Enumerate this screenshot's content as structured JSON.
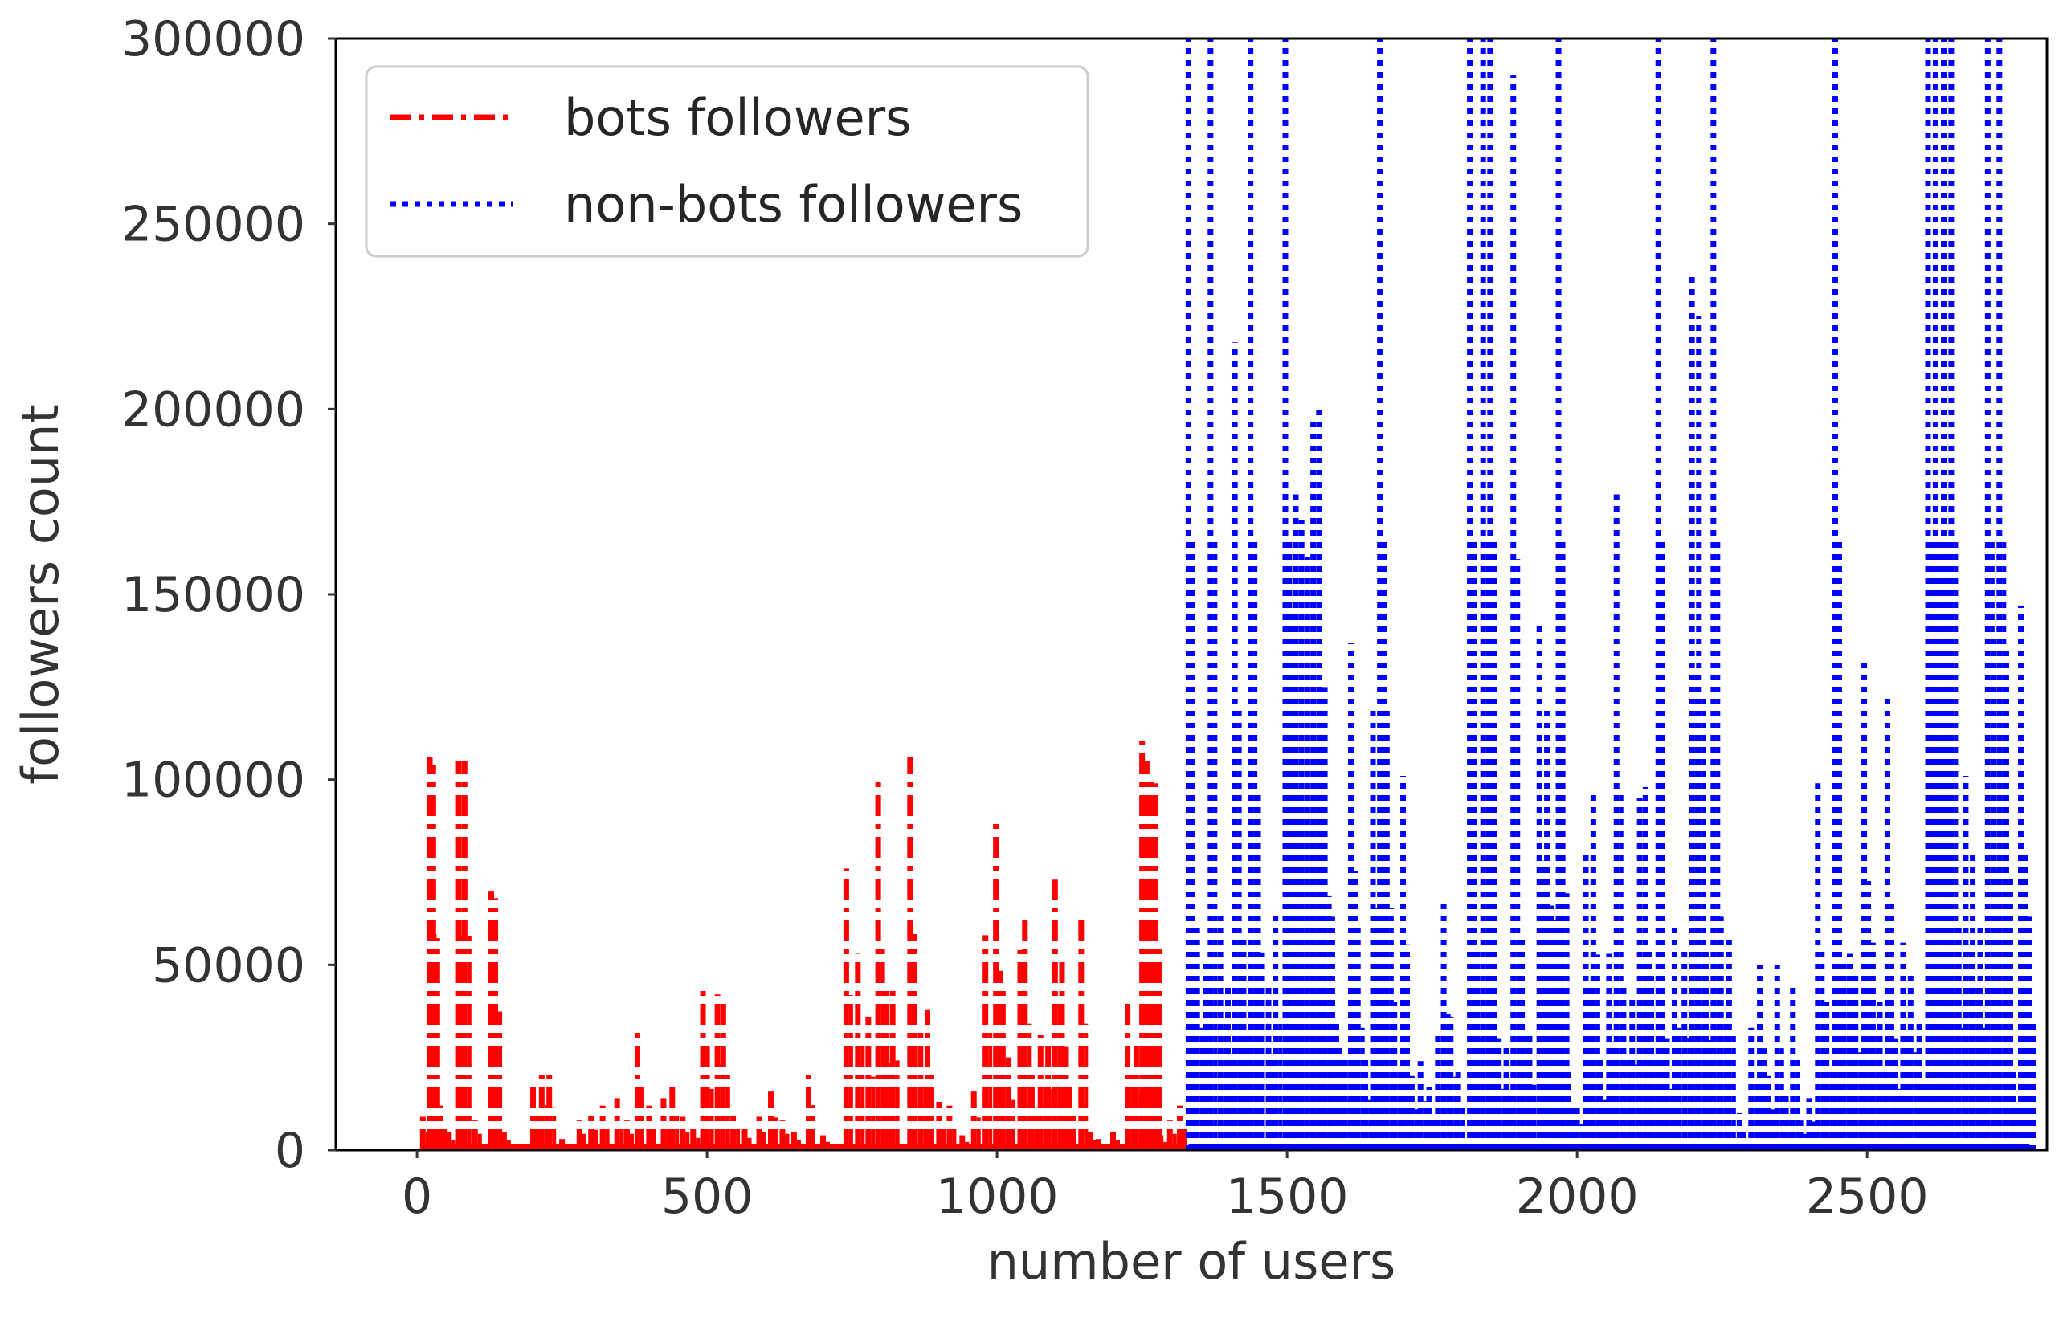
{
  "chart_data": {
    "type": "line",
    "title": "",
    "xlabel": "number of users",
    "ylabel": "followers count",
    "xlim": [
      -140,
      2810
    ],
    "ylim": [
      0,
      300000
    ],
    "xticks": [
      0,
      500,
      1000,
      1500,
      2000,
      2500
    ],
    "xtick_labels": [
      "0",
      "500",
      "1000",
      "1500",
      "2000",
      "2500"
    ],
    "yticks": [
      0,
      50000,
      100000,
      150000,
      200000,
      250000,
      300000
    ],
    "ytick_labels": [
      "0",
      "50000",
      "100000",
      "150000",
      "200000",
      "250000",
      "300000"
    ],
    "grid": false,
    "legend_position": "upper left",
    "series": [
      {
        "name": "bots followers",
        "color": "#ff0000",
        "linestyle": "dashdot",
        "spikes": [
          [
            10,
            9000
          ],
          [
            22,
            106000
          ],
          [
            28,
            104000
          ],
          [
            40,
            12000
          ],
          [
            55,
            5000
          ],
          [
            72,
            105000
          ],
          [
            82,
            105000
          ],
          [
            100,
            8000
          ],
          [
            128,
            70000
          ],
          [
            135,
            68000
          ],
          [
            150,
            5000
          ],
          [
            200,
            18000
          ],
          [
            215,
            22000
          ],
          [
            228,
            21000
          ],
          [
            250,
            3000
          ],
          [
            280,
            8000
          ],
          [
            300,
            10000
          ],
          [
            320,
            12000
          ],
          [
            345,
            14000
          ],
          [
            362,
            8000
          ],
          [
            380,
            33000
          ],
          [
            400,
            12000
          ],
          [
            425,
            14000
          ],
          [
            440,
            17000
          ],
          [
            458,
            9000
          ],
          [
            476,
            6000
          ],
          [
            493,
            43000
          ],
          [
            500,
            30000
          ],
          [
            518,
            42000
          ],
          [
            528,
            40000
          ],
          [
            545,
            11000
          ],
          [
            565,
            6000
          ],
          [
            590,
            9000
          ],
          [
            610,
            16000
          ],
          [
            630,
            8000
          ],
          [
            650,
            5000
          ],
          [
            675,
            22000
          ],
          [
            700,
            4000
          ],
          [
            740,
            76000
          ],
          [
            760,
            53000
          ],
          [
            778,
            36000
          ],
          [
            795,
            100000
          ],
          [
            808,
            43000
          ],
          [
            820,
            44000
          ],
          [
            850,
            106000
          ],
          [
            868,
            32000
          ],
          [
            880,
            38000
          ],
          [
            900,
            13000
          ],
          [
            918,
            12000
          ],
          [
            940,
            4000
          ],
          [
            960,
            16000
          ],
          [
            980,
            58000
          ],
          [
            998,
            88000
          ],
          [
            1010,
            44000
          ],
          [
            1020,
            25000
          ],
          [
            1040,
            54000
          ],
          [
            1048,
            62000
          ],
          [
            1060,
            21000
          ],
          [
            1075,
            31000
          ],
          [
            1088,
            30000
          ],
          [
            1100,
            73000
          ],
          [
            1112,
            51000
          ],
          [
            1125,
            19000
          ],
          [
            1145,
            62000
          ],
          [
            1160,
            5000
          ],
          [
            1175,
            3000
          ],
          [
            1200,
            5000
          ],
          [
            1225,
            40000
          ],
          [
            1240,
            29000
          ],
          [
            1250,
            111000
          ],
          [
            1258,
            105000
          ],
          [
            1265,
            101000
          ],
          [
            1272,
            99000
          ],
          [
            1282,
            4000
          ],
          [
            1298,
            8000
          ],
          [
            1315,
            12000
          ]
        ]
      },
      {
        "name": "non-bots followers",
        "color": "#0000ff",
        "linestyle": "dotted",
        "spikes": [
          [
            1330,
            300000
          ],
          [
            1345,
            60000
          ],
          [
            1360,
            52000
          ],
          [
            1368,
            300000
          ],
          [
            1385,
            65000
          ],
          [
            1398,
            45000
          ],
          [
            1410,
            218000
          ],
          [
            1425,
            57000
          ],
          [
            1437,
            300000
          ],
          [
            1450,
            97000
          ],
          [
            1468,
            45000
          ],
          [
            1480,
            64000
          ],
          [
            1497,
            300000
          ],
          [
            1505,
            145000
          ],
          [
            1515,
            177000
          ],
          [
            1525,
            170000
          ],
          [
            1535,
            160000
          ],
          [
            1545,
            198000
          ],
          [
            1555,
            201000
          ],
          [
            1565,
            125000
          ],
          [
            1578,
            63000
          ],
          [
            1590,
            28000
          ],
          [
            1600,
            25000
          ],
          [
            1610,
            137000
          ],
          [
            1622,
            60000
          ],
          [
            1635,
            25000
          ],
          [
            1648,
            119000
          ],
          [
            1660,
            300000
          ],
          [
            1672,
            119000
          ],
          [
            1685,
            40000
          ],
          [
            1700,
            101000
          ],
          [
            1715,
            20000
          ],
          [
            1730,
            24000
          ],
          [
            1745,
            17000
          ],
          [
            1760,
            31000
          ],
          [
            1770,
            67000
          ],
          [
            1782,
            36000
          ],
          [
            1795,
            22000
          ],
          [
            1815,
            300000
          ],
          [
            1828,
            55000
          ],
          [
            1838,
            300000
          ],
          [
            1850,
            300000
          ],
          [
            1865,
            30000
          ],
          [
            1878,
            28000
          ],
          [
            1890,
            290000
          ],
          [
            1905,
            58000
          ],
          [
            1918,
            32000
          ],
          [
            1935,
            142000
          ],
          [
            1948,
            120000
          ],
          [
            1960,
            62000
          ],
          [
            1968,
            300000
          ],
          [
            1975,
            126000
          ],
          [
            1985,
            22000
          ],
          [
            2000,
            13000
          ],
          [
            2015,
            80000
          ],
          [
            2028,
            96000
          ],
          [
            2040,
            25000
          ],
          [
            2055,
            53000
          ],
          [
            2068,
            177000
          ],
          [
            2080,
            45000
          ],
          [
            2095,
            42000
          ],
          [
            2108,
            95000
          ],
          [
            2118,
            98000
          ],
          [
            2128,
            47000
          ],
          [
            2140,
            300000
          ],
          [
            2155,
            30000
          ],
          [
            2168,
            60000
          ],
          [
            2185,
            55000
          ],
          [
            2198,
            236000
          ],
          [
            2210,
            225000
          ],
          [
            2222,
            54000
          ],
          [
            2235,
            300000
          ],
          [
            2248,
            63000
          ],
          [
            2262,
            58000
          ],
          [
            2280,
            10000
          ],
          [
            2300,
            33000
          ],
          [
            2315,
            50000
          ],
          [
            2330,
            20000
          ],
          [
            2345,
            50000
          ],
          [
            2360,
            15000
          ],
          [
            2372,
            45000
          ],
          [
            2385,
            8000
          ],
          [
            2400,
            14000
          ],
          [
            2415,
            99000
          ],
          [
            2430,
            40000
          ],
          [
            2445,
            300000
          ],
          [
            2460,
            52000
          ],
          [
            2470,
            53000
          ],
          [
            2480,
            48000
          ],
          [
            2495,
            132000
          ],
          [
            2510,
            56000
          ],
          [
            2522,
            40000
          ],
          [
            2535,
            122000
          ],
          [
            2548,
            30000
          ],
          [
            2562,
            56000
          ],
          [
            2575,
            48000
          ],
          [
            2590,
            35000
          ],
          [
            2605,
            300000
          ],
          [
            2618,
            300000
          ],
          [
            2632,
            300000
          ],
          [
            2645,
            300000
          ],
          [
            2658,
            60000
          ],
          [
            2670,
            101000
          ],
          [
            2682,
            80000
          ],
          [
            2695,
            60000
          ],
          [
            2708,
            300000
          ],
          [
            2718,
            138000
          ],
          [
            2728,
            300000
          ],
          [
            2740,
            135000
          ],
          [
            2752,
            22000
          ],
          [
            2765,
            147000
          ],
          [
            2780,
            63000
          ]
        ]
      }
    ]
  }
}
